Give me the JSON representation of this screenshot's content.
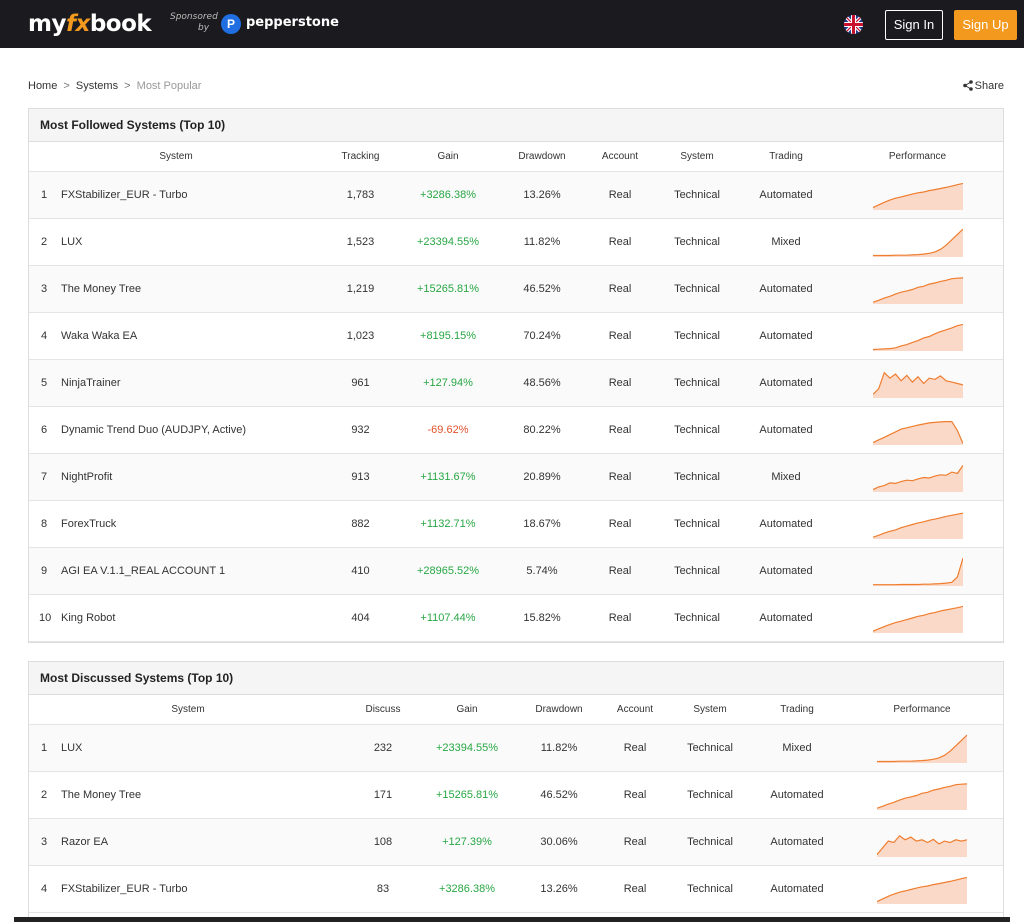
{
  "header": {
    "logo_my": "my",
    "logo_fx": "fx",
    "logo_book": "book",
    "sponsored_line1": "Sponsored",
    "sponsored_line2": "by",
    "sponsor_initial": "P",
    "sponsor_name": "pepperstone",
    "sign_in": "Sign In",
    "sign_up": "Sign Up",
    "accent_color": "#f39a1e"
  },
  "breadcrumb": {
    "home": "Home",
    "sep1": ">",
    "systems": "Systems",
    "sep2": ">",
    "current": "Most Popular"
  },
  "share_label": "Share",
  "followed": {
    "title": "Most Followed Systems (Top 10)",
    "columns": [
      "System",
      "Tracking",
      "Gain",
      "Drawdown",
      "Account",
      "System",
      "Trading",
      "Performance"
    ],
    "rows": [
      {
        "rank": "1",
        "name": "FXStabilizer_EUR - Turbo",
        "count": "1,783",
        "gain": "+3286.38%",
        "drawdown": "13.26%",
        "account": "Real",
        "system": "Technical",
        "trading": "Automated",
        "spark": [
          0.05,
          0.15,
          0.25,
          0.33,
          0.4,
          0.45,
          0.5,
          0.55,
          0.6,
          0.63,
          0.68,
          0.72,
          0.76,
          0.8,
          0.85,
          0.9,
          0.95
        ]
      },
      {
        "rank": "2",
        "name": "LUX",
        "count": "1,523",
        "gain": "+23394.55%",
        "drawdown": "11.82%",
        "account": "Real",
        "system": "Technical",
        "trading": "Mixed",
        "spark": [
          0.02,
          0.02,
          0.02,
          0.02,
          0.03,
          0.03,
          0.03,
          0.04,
          0.05,
          0.07,
          0.1,
          0.15,
          0.25,
          0.4,
          0.6,
          0.8,
          1.0
        ]
      },
      {
        "rank": "3",
        "name": "The Money Tree",
        "count": "1,219",
        "gain": "+15265.81%",
        "drawdown": "46.52%",
        "account": "Real",
        "system": "Technical",
        "trading": "Automated",
        "spark": [
          0.03,
          0.1,
          0.18,
          0.25,
          0.33,
          0.4,
          0.45,
          0.5,
          0.58,
          0.62,
          0.7,
          0.74,
          0.8,
          0.84,
          0.9,
          0.92,
          0.93
        ]
      },
      {
        "rank": "4",
        "name": "Waka Waka EA",
        "count": "1,023",
        "gain": "+8195.15%",
        "drawdown": "70.24%",
        "account": "Real",
        "system": "Technical",
        "trading": "Automated",
        "spark": [
          0.02,
          0.03,
          0.04,
          0.05,
          0.08,
          0.15,
          0.2,
          0.28,
          0.35,
          0.45,
          0.5,
          0.6,
          0.68,
          0.75,
          0.82,
          0.9,
          0.95
        ]
      },
      {
        "rank": "5",
        "name": "NinjaTrainer",
        "count": "961",
        "gain": "+127.94%",
        "drawdown": "48.56%",
        "account": "Real",
        "system": "Technical",
        "trading": "Automated",
        "spark": [
          0.1,
          0.3,
          0.9,
          0.7,
          0.85,
          0.6,
          0.8,
          0.55,
          0.75,
          0.5,
          0.7,
          0.65,
          0.78,
          0.6,
          0.55,
          0.5,
          0.45
        ]
      },
      {
        "rank": "6",
        "name": "Dynamic Trend Duo (AUDJPY, Active)",
        "count": "932",
        "gain": "-69.62%",
        "drawdown": "80.22%",
        "account": "Real",
        "system": "Technical",
        "trading": "Automated",
        "spark": [
          0.05,
          0.15,
          0.25,
          0.35,
          0.45,
          0.55,
          0.6,
          0.65,
          0.7,
          0.74,
          0.78,
          0.8,
          0.82,
          0.83,
          0.83,
          0.5,
          0.02
        ]
      },
      {
        "rank": "7",
        "name": "NightProfit",
        "count": "913",
        "gain": "+1131.67%",
        "drawdown": "20.89%",
        "account": "Real",
        "system": "Technical",
        "trading": "Mixed",
        "spark": [
          0.05,
          0.15,
          0.2,
          0.3,
          0.28,
          0.35,
          0.4,
          0.38,
          0.45,
          0.5,
          0.48,
          0.55,
          0.6,
          0.58,
          0.7,
          0.65,
          0.95
        ]
      },
      {
        "rank": "8",
        "name": "ForexTruck",
        "count": "882",
        "gain": "+1132.71%",
        "drawdown": "18.67%",
        "account": "Real",
        "system": "Technical",
        "trading": "Automated",
        "spark": [
          0.03,
          0.1,
          0.18,
          0.25,
          0.3,
          0.38,
          0.44,
          0.5,
          0.56,
          0.6,
          0.66,
          0.7,
          0.75,
          0.8,
          0.84,
          0.88,
          0.92
        ]
      },
      {
        "rank": "9",
        "name": "AGI EA V.1.1_REAL ACCOUNT 1",
        "count": "410",
        "gain": "+28965.52%",
        "drawdown": "5.74%",
        "account": "Real",
        "system": "Technical",
        "trading": "Automated",
        "spark": [
          0.01,
          0.01,
          0.01,
          0.01,
          0.01,
          0.02,
          0.02,
          0.02,
          0.02,
          0.03,
          0.03,
          0.04,
          0.05,
          0.07,
          0.1,
          0.3,
          1.0
        ]
      },
      {
        "rank": "10",
        "name": "King Robot",
        "count": "404",
        "gain": "+1107.44%",
        "drawdown": "15.82%",
        "account": "Real",
        "system": "Technical",
        "trading": "Automated",
        "spark": [
          0.03,
          0.12,
          0.2,
          0.28,
          0.35,
          0.4,
          0.46,
          0.52,
          0.58,
          0.62,
          0.68,
          0.72,
          0.78,
          0.82,
          0.86,
          0.9,
          0.95
        ]
      }
    ]
  },
  "discussed": {
    "title": "Most Discussed Systems (Top 10)",
    "columns": [
      "System",
      "Discuss",
      "Gain",
      "Drawdown",
      "Account",
      "System",
      "Trading",
      "Performance"
    ],
    "rows": [
      {
        "rank": "1",
        "name": "LUX",
        "count": "232",
        "gain": "+23394.55%",
        "drawdown": "11.82%",
        "account": "Real",
        "system": "Technical",
        "trading": "Mixed",
        "spark": [
          0.02,
          0.02,
          0.02,
          0.02,
          0.03,
          0.03,
          0.03,
          0.04,
          0.05,
          0.07,
          0.1,
          0.15,
          0.25,
          0.4,
          0.6,
          0.8,
          1.0
        ]
      },
      {
        "rank": "2",
        "name": "The Money Tree",
        "count": "171",
        "gain": "+15265.81%",
        "drawdown": "46.52%",
        "account": "Real",
        "system": "Technical",
        "trading": "Automated",
        "spark": [
          0.03,
          0.1,
          0.18,
          0.25,
          0.33,
          0.4,
          0.45,
          0.5,
          0.58,
          0.62,
          0.7,
          0.74,
          0.8,
          0.84,
          0.9,
          0.92,
          0.93
        ]
      },
      {
        "rank": "3",
        "name": "Razor EA",
        "count": "108",
        "gain": "+127.39%",
        "drawdown": "30.06%",
        "account": "Real",
        "system": "Technical",
        "trading": "Automated",
        "spark": [
          0.05,
          0.3,
          0.55,
          0.5,
          0.75,
          0.6,
          0.7,
          0.55,
          0.6,
          0.5,
          0.62,
          0.45,
          0.55,
          0.5,
          0.6,
          0.55,
          0.6
        ]
      },
      {
        "rank": "4",
        "name": "FXStabilizer_EUR - Turbo",
        "count": "83",
        "gain": "+3286.38%",
        "drawdown": "13.26%",
        "account": "Real",
        "system": "Technical",
        "trading": "Automated",
        "spark": [
          0.05,
          0.15,
          0.25,
          0.33,
          0.4,
          0.45,
          0.5,
          0.55,
          0.6,
          0.63,
          0.68,
          0.72,
          0.76,
          0.8,
          0.85,
          0.9,
          0.95
        ]
      }
    ]
  }
}
